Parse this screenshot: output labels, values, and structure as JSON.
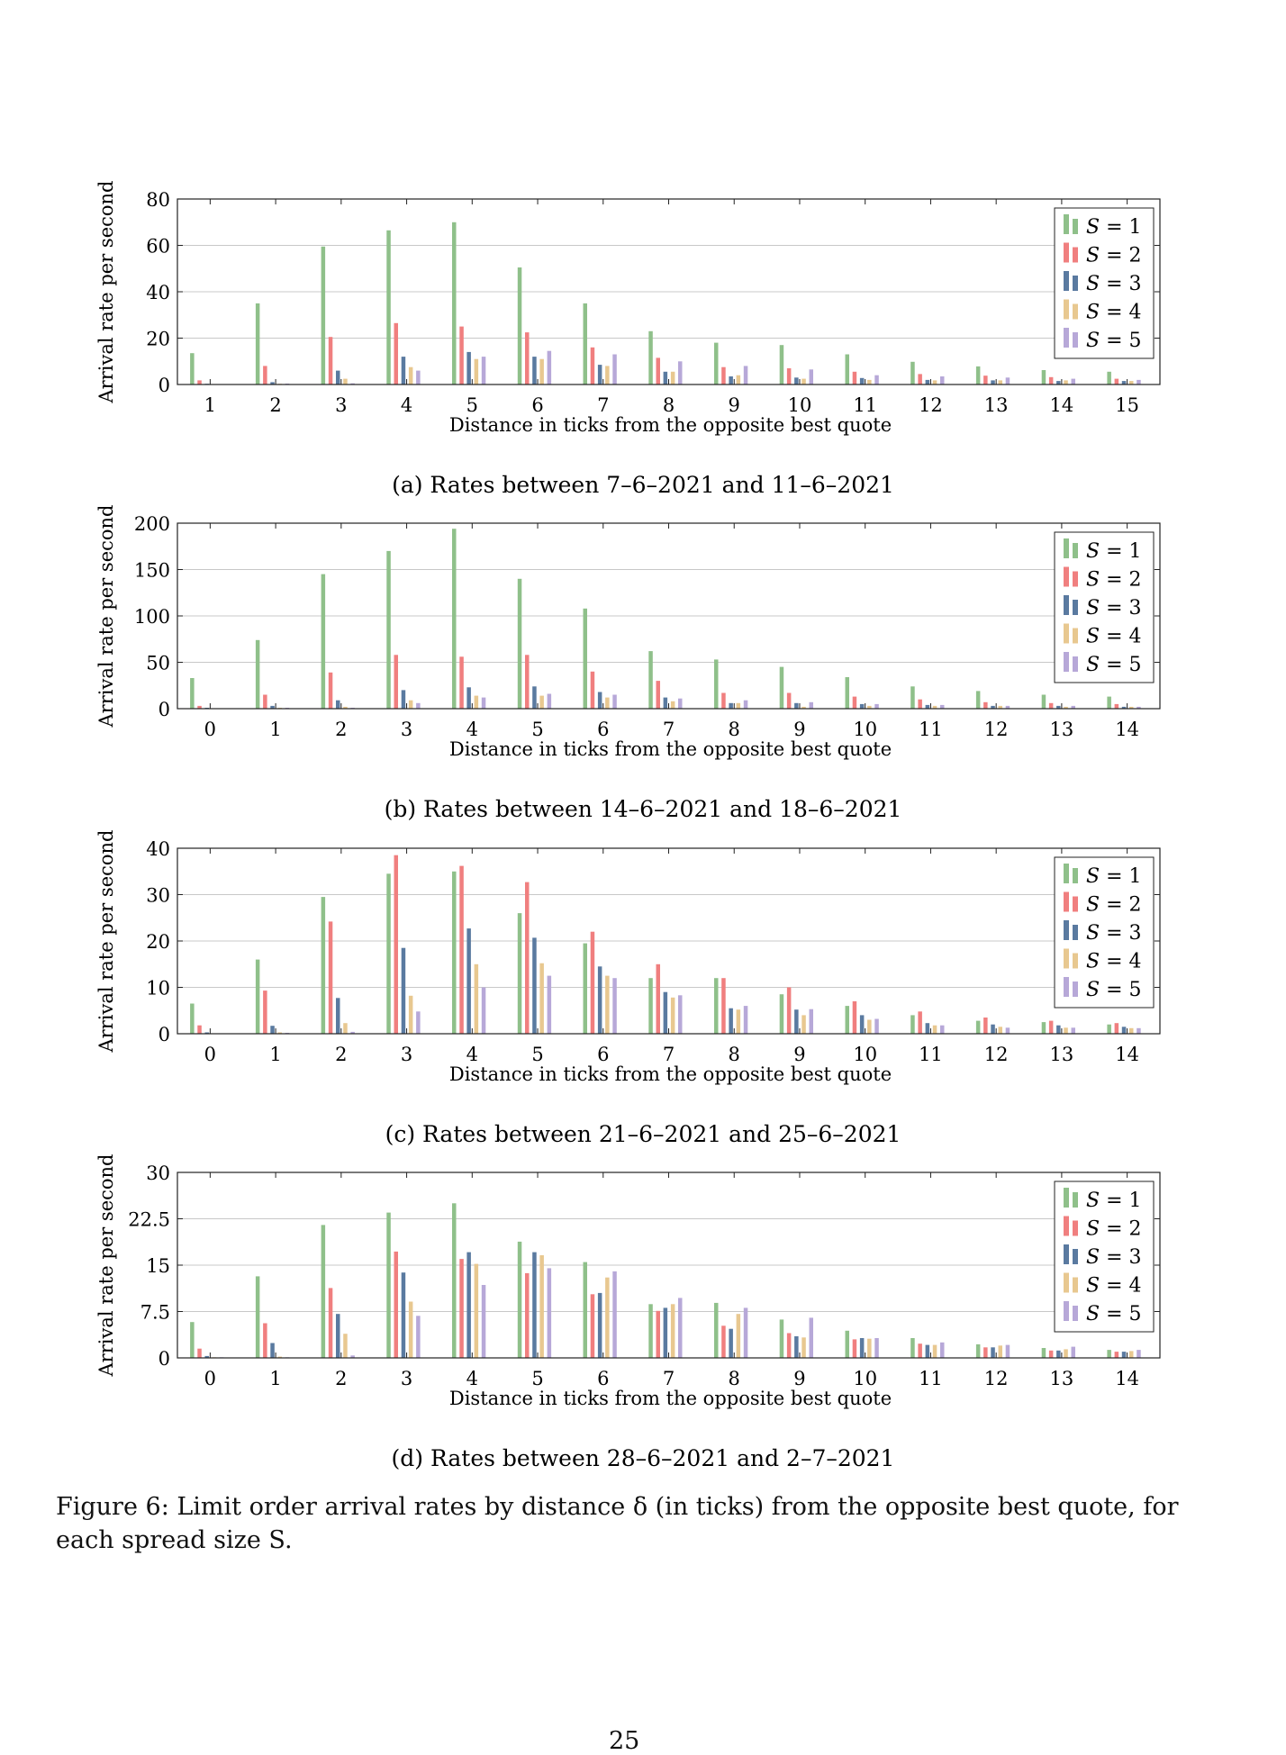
{
  "figure": {
    "caption": "Figure 6: Limit order arrival rates by distance δ (in ticks) from the opposite best quote, for each spread size S.",
    "page_number": "25"
  },
  "chart_data": [
    {
      "type": "bar",
      "subcaption": "(a) Rates between 7–6–2021 and 11–6–2021",
      "xlabel": "Distance in ticks from the opposite best quote",
      "ylabel": "Arrival rate per second",
      "categories": [
        "1",
        "2",
        "3",
        "4",
        "5",
        "6",
        "7",
        "8",
        "9",
        "10",
        "11",
        "12",
        "13",
        "14",
        "15"
      ],
      "ylim": [
        0,
        80
      ],
      "yticks": [
        "0",
        "20",
        "40",
        "60",
        "80"
      ],
      "grid": true,
      "legend_position": "top-right",
      "series": [
        {
          "name": "S = 1",
          "color": "#8fc08a",
          "values": [
            13.5,
            35,
            59.5,
            66.5,
            70,
            50.5,
            35,
            23,
            18,
            17,
            13,
            9.8,
            7.8,
            6.2,
            5.5
          ]
        },
        {
          "name": "S = 2",
          "color": "#f07f7f",
          "values": [
            1.8,
            8,
            20.5,
            26.5,
            25,
            22.5,
            16,
            11.5,
            7.5,
            7,
            5.5,
            4.5,
            3.8,
            3.2,
            2.5
          ]
        },
        {
          "name": "S = 3",
          "color": "#5a7aa0",
          "values": [
            0.3,
            1,
            6,
            12,
            14,
            12,
            8.5,
            5.5,
            3.5,
            3,
            2.8,
            2,
            1.8,
            1.5,
            1.5
          ]
        },
        {
          "name": "S = 4",
          "color": "#e8c890",
          "values": [
            0.1,
            0.3,
            2.5,
            7.5,
            11,
            11,
            8,
            5.5,
            4,
            2.5,
            2,
            1.8,
            1.8,
            1.8,
            1.5
          ]
        },
        {
          "name": "S = 5",
          "color": "#b7a8d8",
          "values": [
            0.1,
            0.4,
            0.5,
            6,
            12,
            14.5,
            13,
            10,
            8,
            6.5,
            4,
            3.5,
            3,
            2.5,
            2
          ]
        }
      ]
    },
    {
      "type": "bar",
      "subcaption": "(b) Rates between 14–6–2021 and 18–6–2021",
      "xlabel": "Distance in ticks from the opposite best quote",
      "ylabel": "Arrival rate per second",
      "categories": [
        "0",
        "1",
        "2",
        "3",
        "4",
        "5",
        "6",
        "7",
        "8",
        "9",
        "10",
        "11",
        "12",
        "13",
        "14"
      ],
      "ylim": [
        0,
        200
      ],
      "yticks": [
        "0",
        "50",
        "100",
        "150",
        "200"
      ],
      "grid": true,
      "legend_position": "top-right",
      "series": [
        {
          "name": "S = 1",
          "color": "#8fc08a",
          "values": [
            33,
            74,
            145,
            170,
            194,
            140,
            108,
            62,
            53,
            45,
            34,
            24,
            19,
            15,
            13
          ]
        },
        {
          "name": "S = 2",
          "color": "#f07f7f",
          "values": [
            3,
            15,
            39,
            58,
            56,
            58,
            40,
            30,
            17,
            17,
            13,
            10,
            7,
            6,
            5
          ]
        },
        {
          "name": "S = 3",
          "color": "#5a7aa0",
          "values": [
            1,
            3,
            9,
            20,
            23,
            24,
            18,
            12,
            6,
            6,
            5,
            4,
            3,
            3,
            2
          ]
        },
        {
          "name": "S = 4",
          "color": "#e8c890",
          "values": [
            0.5,
            1,
            2,
            9,
            14,
            14,
            12,
            8,
            6,
            2,
            3,
            3,
            3,
            2,
            2
          ]
        },
        {
          "name": "S = 5",
          "color": "#b7a8d8",
          "values": [
            0.5,
            1,
            1,
            6,
            12,
            16,
            15,
            11,
            9,
            7,
            5,
            4,
            3,
            3,
            2
          ]
        }
      ]
    },
    {
      "type": "bar",
      "subcaption": "(c) Rates between 21–6–2021 and 25–6–2021",
      "xlabel": "Distance in ticks from the opposite best quote",
      "ylabel": "Arrival rate per second",
      "categories": [
        "0",
        "1",
        "2",
        "3",
        "4",
        "5",
        "6",
        "7",
        "8",
        "9",
        "10",
        "11",
        "12",
        "13",
        "14"
      ],
      "ylim": [
        0,
        40
      ],
      "yticks": [
        "0",
        "10",
        "20",
        "30",
        "40"
      ],
      "grid": true,
      "legend_position": "top-right",
      "series": [
        {
          "name": "S = 1",
          "color": "#8fc08a",
          "values": [
            6.5,
            16,
            29.5,
            34.5,
            35,
            26,
            19.5,
            12,
            12,
            8.5,
            6,
            4,
            2.8,
            2.5,
            2
          ]
        },
        {
          "name": "S = 2",
          "color": "#f07f7f",
          "values": [
            1.8,
            9.3,
            24.2,
            38.5,
            36.2,
            32.7,
            22,
            15,
            12,
            10,
            7,
            4.8,
            3.5,
            2.8,
            2.3
          ]
        },
        {
          "name": "S = 3",
          "color": "#5a7aa0",
          "values": [
            0.3,
            1.7,
            7.7,
            18.5,
            22.7,
            20.7,
            14.5,
            9,
            5.5,
            5.2,
            4,
            2.3,
            2,
            1.8,
            1.5
          ]
        },
        {
          "name": "S = 4",
          "color": "#e8c890",
          "values": [
            0.1,
            0.3,
            2.3,
            8.2,
            15,
            15.2,
            12.5,
            7.8,
            5.2,
            4,
            3,
            1.8,
            1.5,
            1.3,
            1.2
          ]
        },
        {
          "name": "S = 5",
          "color": "#b7a8d8",
          "values": [
            0.1,
            0.2,
            0.4,
            4.8,
            10,
            12.5,
            12,
            8.3,
            6,
            5.3,
            3.2,
            1.8,
            1.3,
            1.3,
            1.2
          ]
        }
      ]
    },
    {
      "type": "bar",
      "subcaption": "(d) Rates between 28–6–2021 and 2–7–2021",
      "xlabel": "Distance in ticks from the opposite best quote",
      "ylabel": "Arrival rate per second",
      "categories": [
        "0",
        "1",
        "2",
        "3",
        "4",
        "5",
        "6",
        "7",
        "8",
        "9",
        "10",
        "11",
        "12",
        "13",
        "14"
      ],
      "ylim": [
        0,
        30
      ],
      "yticks": [
        "0",
        "7.5",
        "15",
        "22.5",
        "30"
      ],
      "grid": true,
      "legend_position": "top-right",
      "series": [
        {
          "name": "S = 1",
          "color": "#8fc08a",
          "values": [
            5.8,
            13.2,
            21.5,
            23.5,
            25,
            18.8,
            15.5,
            8.7,
            8.9,
            6.2,
            4.4,
            3.2,
            2.2,
            1.6,
            1.3
          ]
        },
        {
          "name": "S = 2",
          "color": "#f07f7f",
          "values": [
            1.5,
            5.6,
            11.3,
            17.2,
            16,
            13.7,
            10.3,
            7.6,
            5.2,
            4,
            3,
            2.3,
            1.7,
            1.2,
            1
          ]
        },
        {
          "name": "S = 3",
          "color": "#5a7aa0",
          "values": [
            0.3,
            2.4,
            7.1,
            13.8,
            17.1,
            17.1,
            10.5,
            8.1,
            4.7,
            3.5,
            3.2,
            2.1,
            1.7,
            1.2,
            1
          ]
        },
        {
          "name": "S = 4",
          "color": "#e8c890",
          "values": [
            0.1,
            0.2,
            3.9,
            9.1,
            15.2,
            16.6,
            13,
            8.7,
            7.1,
            3.3,
            3.1,
            2.1,
            2,
            1.4,
            1.1
          ]
        },
        {
          "name": "S = 5",
          "color": "#b7a8d8",
          "values": [
            0.1,
            0.1,
            0.4,
            6.8,
            11.8,
            14.5,
            14,
            9.7,
            8.1,
            6.5,
            3.2,
            2.5,
            2.1,
            1.8,
            1.3
          ]
        }
      ]
    }
  ]
}
